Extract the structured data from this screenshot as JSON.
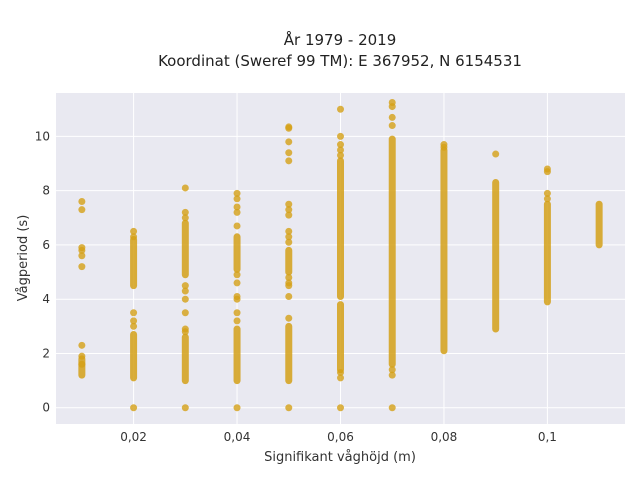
{
  "chart_data": {
    "type": "scatter",
    "title_line1": "År 1979 - 2019",
    "title_line2": "Koordinat (Sweref 99 TM): E 367952, N 6154531",
    "xlabel": "Signifikant våghöjd (m)",
    "ylabel": "Vågperiod (s)",
    "xlim": [
      0.005,
      0.115
    ],
    "ylim": [
      -0.6,
      11.6
    ],
    "x_ticks": [
      0.02,
      0.04,
      0.06,
      0.08,
      0.1
    ],
    "x_tick_labels": [
      "0,02",
      "0,04",
      "0,06",
      "0,08",
      "0,1"
    ],
    "y_ticks": [
      0,
      2,
      4,
      6,
      8,
      10
    ],
    "y_tick_labels": [
      "0",
      "2",
      "4",
      "6",
      "8",
      "10"
    ],
    "grid": true,
    "colors": {
      "background": "#e9e9f1",
      "grid": "#ffffff",
      "marker": "#d4a017"
    },
    "columns": [
      {
        "x": 0.01,
        "points": [
          7.6,
          7.3,
          5.9,
          5.8,
          5.6,
          5.2,
          2.3,
          1.9,
          1.6
        ],
        "ranges": [
          [
            1.2,
            1.8
          ]
        ]
      },
      {
        "x": 0.02,
        "points": [
          6.5,
          6.3,
          3.5,
          3.2,
          3.0,
          0
        ],
        "ranges": [
          [
            4.5,
            6.2
          ],
          [
            1.1,
            2.7
          ]
        ]
      },
      {
        "x": 0.03,
        "points": [
          8.1,
          7.2,
          7.0,
          4.5,
          4.3,
          4.0,
          3.5,
          2.9,
          2.8,
          0
        ],
        "ranges": [
          [
            4.9,
            6.8
          ],
          [
            1.0,
            2.6
          ]
        ]
      },
      {
        "x": 0.04,
        "points": [
          7.9,
          7.7,
          7.4,
          7.2,
          6.7,
          4.9,
          4.6,
          4.1,
          4.0,
          3.5,
          3.2,
          0
        ],
        "ranges": [
          [
            5.1,
            6.3
          ],
          [
            1.0,
            2.9
          ]
        ]
      },
      {
        "x": 0.05,
        "points": [
          10.35,
          10.3,
          9.8,
          9.4,
          9.1,
          7.5,
          7.3,
          7.1,
          6.5,
          6.3,
          6.1,
          4.8,
          4.6,
          4.5,
          4.1,
          3.3,
          0
        ],
        "ranges": [
          [
            5.0,
            5.8
          ],
          [
            1.0,
            3.0
          ]
        ]
      },
      {
        "x": 0.06,
        "points": [
          11.0,
          10.0,
          9.7,
          9.5,
          9.3,
          1.3,
          1.1,
          0
        ],
        "ranges": [
          [
            4.1,
            9.1
          ],
          [
            1.4,
            3.8
          ]
        ]
      },
      {
        "x": 0.07,
        "points": [
          11.25,
          11.1,
          10.7,
          10.4,
          1.4,
          1.2,
          0
        ],
        "ranges": [
          [
            1.6,
            9.9
          ]
        ]
      },
      {
        "x": 0.08,
        "points": [
          9.7,
          9.6
        ],
        "ranges": [
          [
            2.1,
            9.5
          ]
        ]
      },
      {
        "x": 0.09,
        "points": [
          9.35
        ],
        "ranges": [
          [
            2.9,
            8.3
          ]
        ]
      },
      {
        "x": 0.1,
        "points": [
          8.8,
          8.7,
          7.9,
          7.7
        ],
        "ranges": [
          [
            3.9,
            7.5
          ]
        ]
      },
      {
        "x": 0.11,
        "points": [],
        "ranges": [
          [
            6.0,
            7.5
          ]
        ]
      }
    ]
  }
}
